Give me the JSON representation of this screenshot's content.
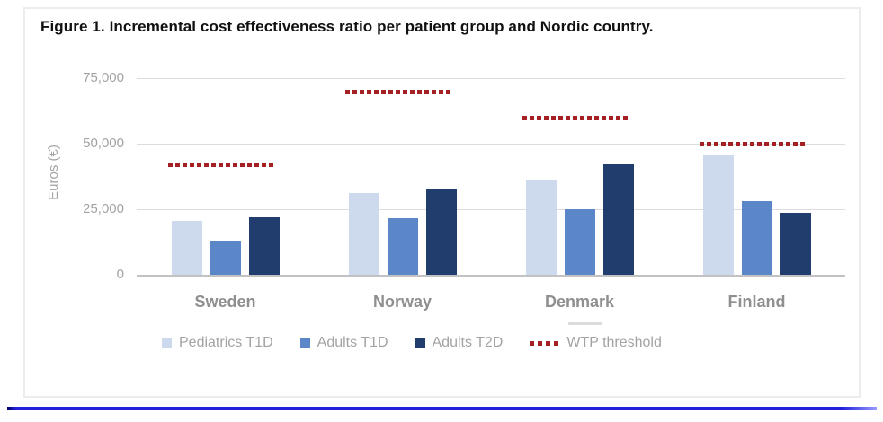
{
  "page": {
    "divider_color": "#2222dd"
  },
  "chart_data": {
    "type": "bar",
    "title": "Figure 1. Incremental cost effectiveness ratio per patient group and Nordic country.",
    "xlabel": "",
    "ylabel": "Euros (€)",
    "ylim": [
      0,
      75000
    ],
    "yticks": [
      0,
      25000,
      50000,
      75000
    ],
    "ytick_labels": [
      "0",
      "25,000",
      "50,000",
      "75,000"
    ],
    "grid": "horizontal",
    "legend_position": "bottom",
    "categories": [
      "Sweden",
      "Norway",
      "Denmark",
      "Finland"
    ],
    "series": [
      {
        "name": "Pediatrics T1D",
        "color": "#cdd9ec",
        "values": [
          20500,
          31000,
          36000,
          45500
        ]
      },
      {
        "name": "Adults T1D",
        "color": "#5b87c8",
        "values": [
          13000,
          21500,
          25000,
          28000
        ]
      },
      {
        "name": "Adults T2D",
        "color": "#213d6d",
        "values": [
          22000,
          32500,
          42000,
          23500
        ]
      }
    ],
    "threshold_series": {
      "name": "WTP threshold",
      "color": "#a42025",
      "style": "dotted",
      "values": [
        42000,
        70000,
        60000,
        50000
      ]
    }
  }
}
